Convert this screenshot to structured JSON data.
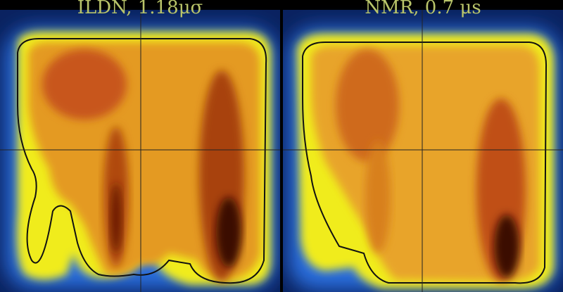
{
  "chart_data": [
    {
      "type": "heatmap",
      "title": "ILDN, 1.18μσ",
      "colormap": [
        "#0a1f5c",
        "#1e5fd0",
        "#f2f01a",
        "#e8a020",
        "#c85a10",
        "#3a0a02"
      ],
      "grid": true
    },
    {
      "type": "heatmap",
      "title": "NMR, 0.7 μs",
      "colormap": [
        "#0a1f5c",
        "#1e5fd0",
        "#f2f01a",
        "#e8a020",
        "#c85a10",
        "#3a0a02"
      ],
      "grid": true
    }
  ]
}
